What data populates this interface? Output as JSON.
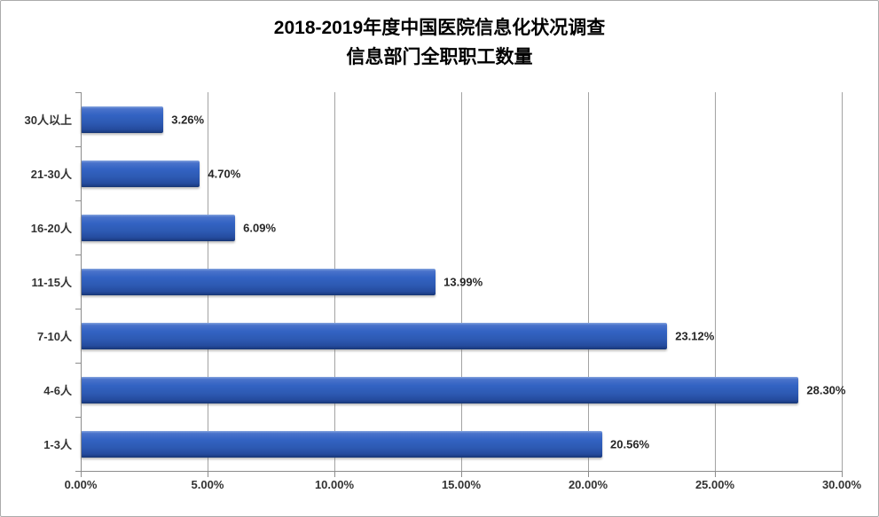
{
  "chart_data": {
    "type": "bar",
    "orientation": "horizontal",
    "title": "2018-2019年度中国医院信息化状况调查",
    "subtitle": "信息部门全职职工数量",
    "categories": [
      "30人以上",
      "21-30人",
      "16-20人",
      "11-15人",
      "7-10人",
      "4-6人",
      "1-3人"
    ],
    "values": [
      3.26,
      4.7,
      6.09,
      13.99,
      23.12,
      28.3,
      20.56
    ],
    "value_labels": [
      "3.26%",
      "4.70%",
      "6.09%",
      "13.99%",
      "23.12%",
      "28.30%",
      "20.56%"
    ],
    "xlim": [
      0,
      30
    ],
    "x_tick_values": [
      0,
      5,
      10,
      15,
      20,
      25,
      30
    ],
    "x_tick_labels": [
      "0.00%",
      "5.00%",
      "10.00%",
      "15.00%",
      "20.00%",
      "25.00%",
      "30.00%"
    ],
    "grid": true,
    "legend_position": "none",
    "bar_color": "#2d5ab3",
    "gridline_color": "#a3a3a3",
    "axis_color": "#8c8c8c",
    "label_color": "#333333"
  }
}
